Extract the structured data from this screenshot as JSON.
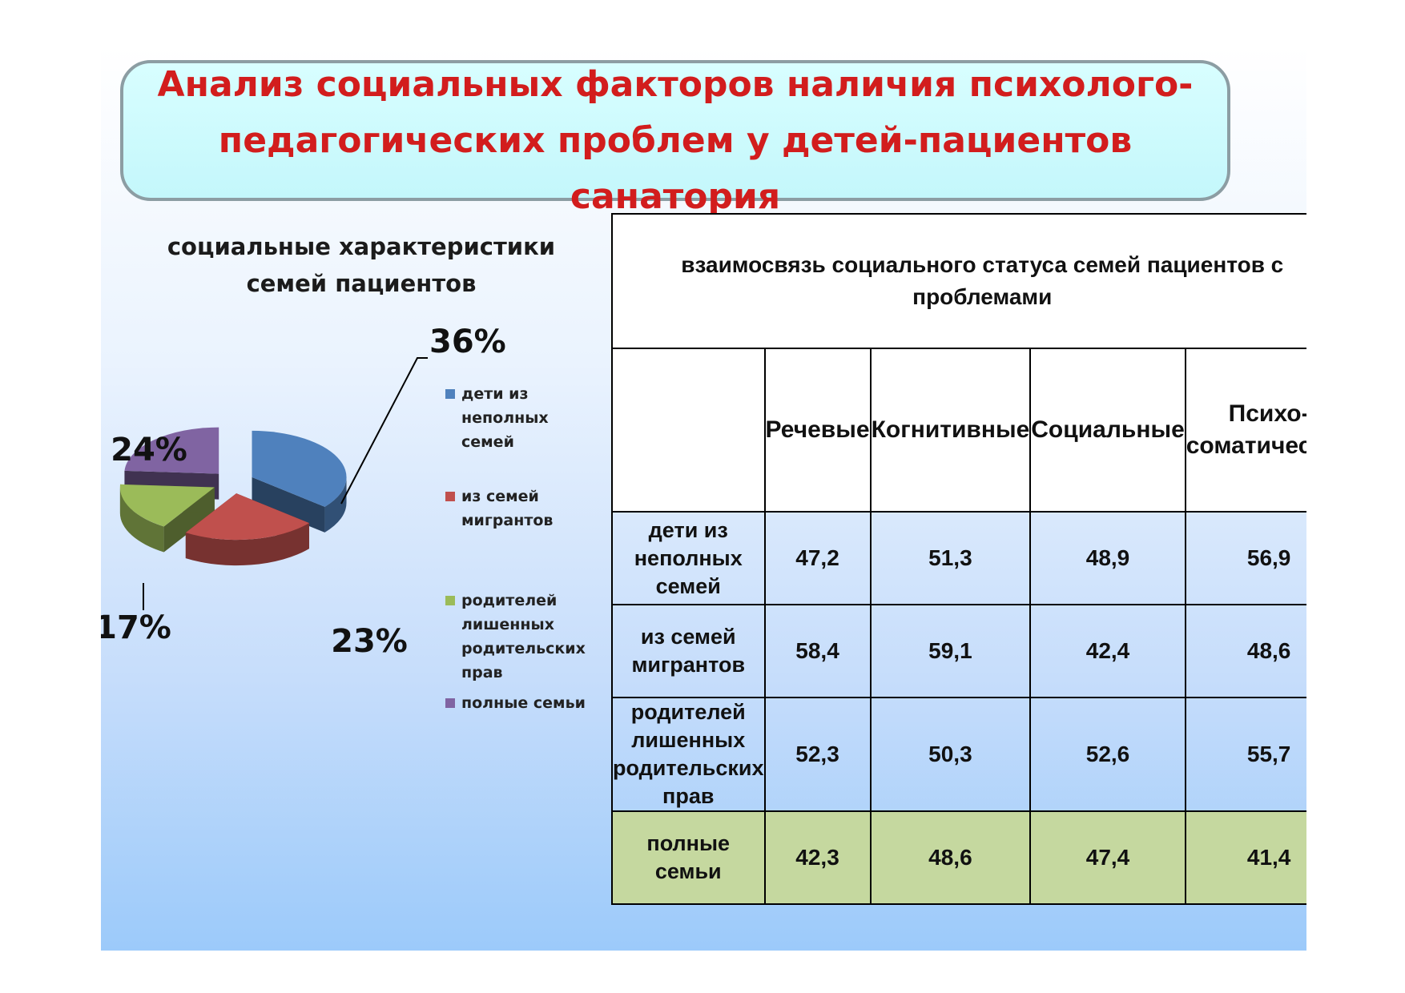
{
  "title": "Анализ социальных факторов наличия психолого-педагогических проблем у детей-пациентов санатория",
  "colors": {
    "title": "#d21d1d",
    "title_box_fill": "#cbfafd",
    "highlight_row": "#c5d89f"
  },
  "chart_data": {
    "type": "pie",
    "title": "социальные характеристики семей пациентов",
    "legend_position": "right",
    "slices": [
      {
        "label": "дети из неполных семей",
        "value": 36,
        "data_label": "36%",
        "color": "#4f81bd"
      },
      {
        "label": "из семей мигрантов",
        "value": 23,
        "data_label": "23%",
        "color": "#c0504d"
      },
      {
        "label": "родителей лишенных родительских прав",
        "value": 17,
        "data_label": "17%",
        "color": "#9bbb59"
      },
      {
        "label": "полные семьи",
        "value": 24,
        "data_label": "24%",
        "color": "#8064a2"
      }
    ]
  },
  "table": {
    "caption": "взаимосвязь социального статуса семей пациентов с проблемами",
    "columns": [
      "Речевые",
      "Когнитивные",
      "Социальные",
      "Психо-соматические"
    ],
    "rows": [
      {
        "label": "дети из неполных семей",
        "values": [
          "47,2",
          "51,3",
          "48,9",
          "56,9"
        ]
      },
      {
        "label": "из семей мигрантов",
        "values": [
          "58,4",
          "59,1",
          "42,4",
          "48,6"
        ]
      },
      {
        "label": "родителей лишенных родительских прав",
        "values": [
          "52,3",
          "50,3",
          "52,6",
          "55,7"
        ]
      },
      {
        "label": "полные семьи",
        "values": [
          "42,3",
          "48,6",
          "47,4",
          "41,4"
        ]
      }
    ]
  }
}
